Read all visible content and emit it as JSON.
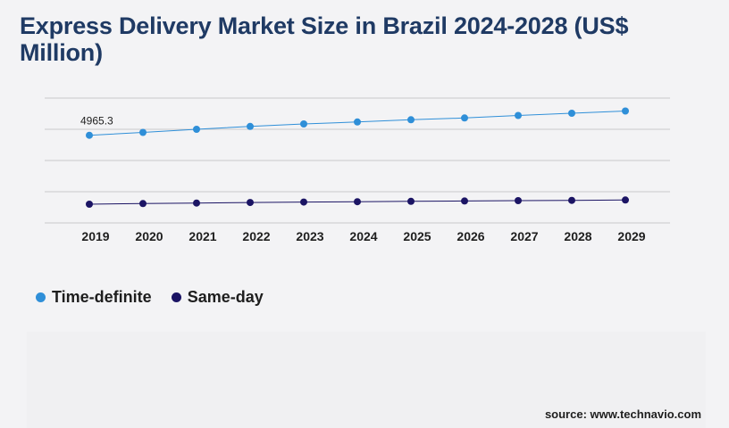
{
  "title": "Express Delivery Market Size in Brazil 2024-2028 (US$ Million)",
  "source": "source: www.technavio.com",
  "colors": {
    "time_definite": "#2f8fd8",
    "same_day": "#1b1464",
    "gridline": "#c8c8cc",
    "background": "#f3f3f5"
  },
  "chart_data": {
    "type": "line",
    "title": "Express Delivery Market Size in Brazil 2024-2028 (US$ Million)",
    "x": [
      "2019",
      "2020",
      "2021",
      "2022",
      "2023",
      "2024",
      "2025",
      "2026",
      "2027",
      "2028",
      "2029"
    ],
    "series": [
      {
        "name": "Time-definite",
        "values": [
          4965.3,
          5030,
          5100,
          5165,
          5220,
          5265,
          5315,
          5355,
          5410,
          5460,
          5510
        ],
        "data_labels": [
          "4965.3",
          "",
          "",
          "",
          "",
          "",
          "",
          "",
          "",
          "",
          ""
        ]
      },
      {
        "name": "Same-day",
        "values": [
          3420,
          3433,
          3446,
          3458,
          3468,
          3476,
          3485,
          3492,
          3500,
          3507,
          3515
        ]
      }
    ],
    "ylim": [
      3000,
      5800
    ],
    "grid": true,
    "show_y_ticks": false,
    "legend_position": "bottom-left"
  }
}
